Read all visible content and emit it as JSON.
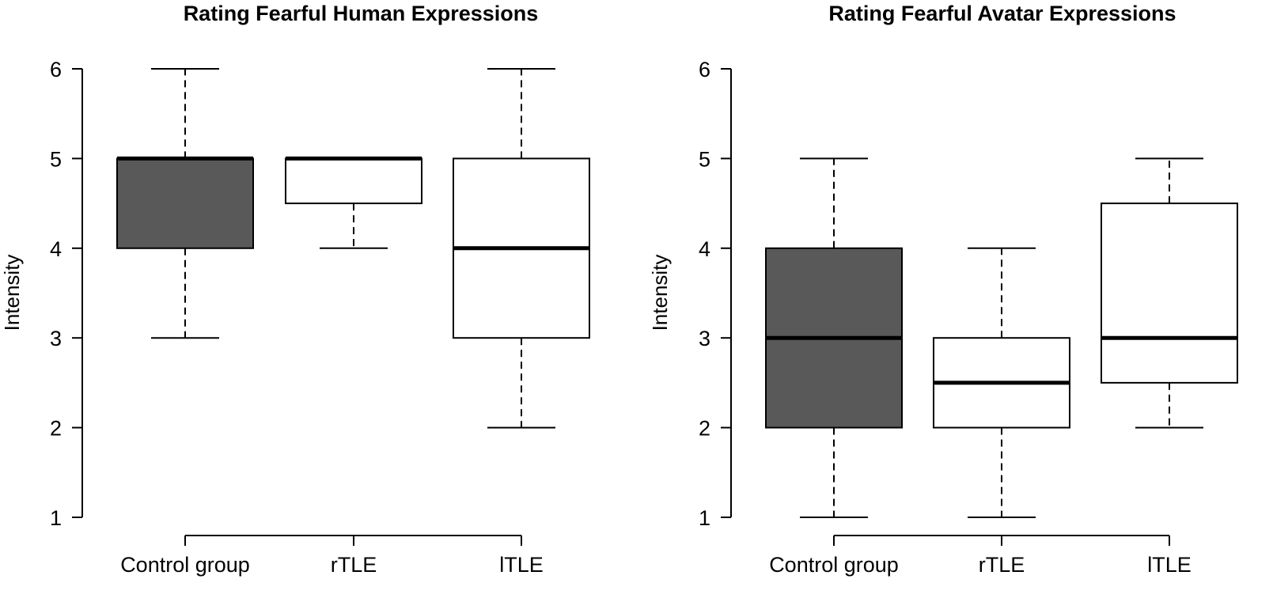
{
  "colors": {
    "control_fill": "#595959",
    "patient_fill": "#ffffff",
    "ink": "#000000"
  },
  "chart_data": [
    {
      "type": "box",
      "title": "Rating Fearful Human Expressions",
      "ylabel": "Intensity",
      "ylim": [
        1,
        6
      ],
      "yticks": [
        "1",
        "2",
        "3",
        "4",
        "5",
        "6"
      ],
      "categories": [
        "Control group",
        "rTLE",
        "lTLE"
      ],
      "boxes": [
        {
          "label": "Control group",
          "whisker_low": 3,
          "q1": 4,
          "median": 5,
          "q3": 5,
          "whisker_high": 6
        },
        {
          "label": "rTLE",
          "whisker_low": 4,
          "q1": 4.5,
          "median": 5,
          "q3": 5,
          "whisker_high": 5
        },
        {
          "label": "lTLE",
          "whisker_low": 2,
          "q1": 3,
          "median": 4,
          "q3": 5,
          "whisker_high": 6
        }
      ]
    },
    {
      "type": "box",
      "title": "Rating Fearful Avatar Expressions",
      "ylabel": "Intensity",
      "ylim": [
        1,
        6
      ],
      "yticks": [
        "1",
        "2",
        "3",
        "4",
        "5",
        "6"
      ],
      "categories": [
        "Control group",
        "rTLE",
        "lTLE"
      ],
      "boxes": [
        {
          "label": "Control group",
          "whisker_low": 1,
          "q1": 2,
          "median": 3,
          "q3": 4,
          "whisker_high": 5
        },
        {
          "label": "rTLE",
          "whisker_low": 1,
          "q1": 2,
          "median": 2.5,
          "q3": 3,
          "whisker_high": 4
        },
        {
          "label": "lTLE",
          "whisker_low": 2,
          "q1": 2.5,
          "median": 3,
          "q3": 4.5,
          "whisker_high": 5
        }
      ]
    }
  ]
}
